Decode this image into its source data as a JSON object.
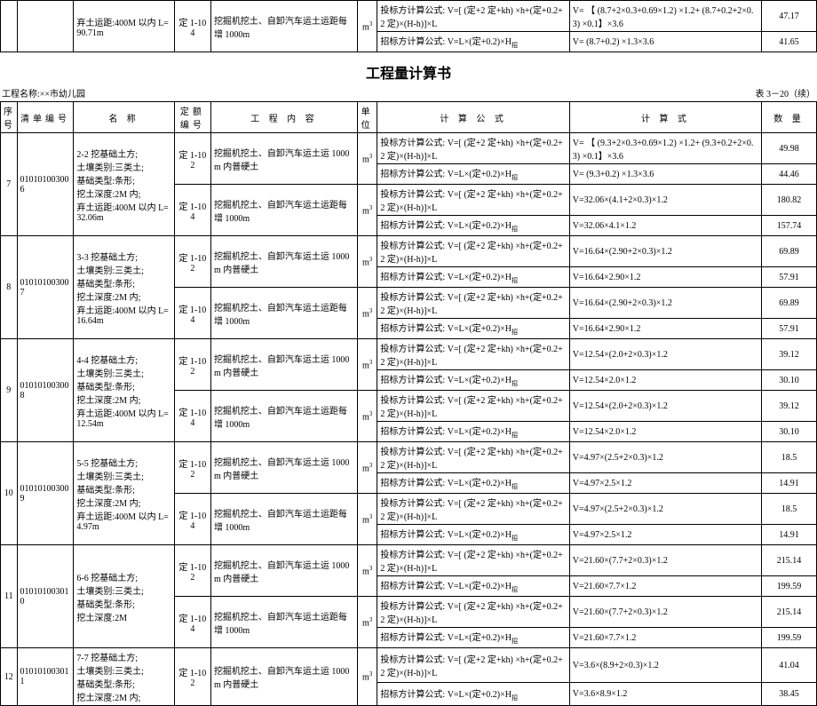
{
  "top_section": {
    "row1": {
      "name_fragment": "弃土运距:400M 以内  L=90.71m",
      "dnum": "定 1-104",
      "content": "挖掘机挖土、自卸汽车运土运距每增 1000m",
      "unit_html": "m³",
      "lines": [
        {
          "formula": "投标方计算公式: V=[ (定+2 定+kh) ×h+(定+0.2+2 定)×(H-h)]×L",
          "calc": "V= 【 (8.7+2×0.3+0.69×1.2) ×1.2+ (8.7+0.2+2×0.3) ×0.1】×3.6",
          "qty": "47.17"
        },
        {
          "formula": "招标方计算公式: V=L×(定+0.2)×H 招",
          "calc": "V= (8.7+0.2) ×1.3×3.6",
          "qty": "41.65"
        }
      ]
    }
  },
  "title": "工程量计算书",
  "project_name_label": "工程名称:",
  "project_name": "××市幼儿园",
  "table_no": "表 3－20（续）",
  "headers": {
    "seq": "序号",
    "code": "清单编号",
    "name": "名    称",
    "dnum": "定额编号",
    "content": "工 程 内 容",
    "unit": "单位",
    "formula": "计 算 公 式",
    "calc": "计    算    式",
    "qty": "数  量"
  },
  "groups": [
    {
      "seq": "7",
      "code": "010101003006",
      "name_lines": [
        "2-2 挖基础土方;",
        "土壤类别:三类土;",
        "基础类型:条形;",
        "挖土深度:2M 内;",
        "弃土运距:400M 以内 L=32.06m"
      ],
      "items": [
        {
          "dnum": "定 1-102",
          "content": "挖掘机挖土、自卸汽车运土运 1000m 内普硬土",
          "unit_html": "m³",
          "lines": [
            {
              "formula": "投标方计算公式: V=[ (定+2 定+kh) ×h+(定+0.2+2 定)×(H-h)]×L",
              "calc": "V= 【 (9.3+2×0.3+0.69×1.2) ×1.2+ (9.3+0.2+2×0.3) ×0.1】×3.6",
              "qty": "49.98"
            },
            {
              "formula": "招标方计算公式: V=L×(定+0.2)×H 招",
              "calc": "V= (9.3+0.2) ×1.3×3.6",
              "qty": "44.46"
            }
          ]
        },
        {
          "dnum": "定 1-104",
          "content": "挖掘机挖土、自卸汽车运土运距每增 1000m",
          "unit_html": "m³",
          "lines": [
            {
              "formula": "投标方计算公式: V=[ (定+2 定+kh) ×h+(定+0.2+2 定)×(H-h)]×L",
              "calc": "V=32.06×(4.1+2×0.3)×1.2",
              "qty": "180.82"
            },
            {
              "formula": "招标方计算公式: V=L×(定+0.2)×H 招",
              "calc": "V=32.06×4.1×1.2",
              "qty": "157.74"
            }
          ]
        }
      ]
    },
    {
      "seq": "8",
      "code": "010101003007",
      "name_lines": [
        "3-3 挖基础土方;",
        "土壤类别:三类土;",
        "基础类型:条形;",
        "挖土深度:2M 内;",
        "弃土运距:400M 以内  L=16.64m"
      ],
      "items": [
        {
          "dnum": "定 1-102",
          "content": "挖掘机挖土、自卸汽车运土运 1000m 内普硬土",
          "unit_html": "m³",
          "lines": [
            {
              "formula": "投标方计算公式: V=[ (定+2 定+kh) ×h+(定+0.2+2 定)×(H-h)]×L",
              "calc": "V=16.64×(2.90+2×0.3)×1.2",
              "qty": "69.89"
            },
            {
              "formula": "招标方计算公式: V=L×(定+0.2)×H 招",
              "calc": "V=16.64×2.90×1.2",
              "qty": "57.91"
            }
          ]
        },
        {
          "dnum": "定 1-104",
          "content": "挖掘机挖土、自卸汽车运土运距每增 1000m",
          "unit_html": "m³",
          "lines": [
            {
              "formula": "投标方计算公式: V=[ (定+2 定+kh) ×h+(定+0.2+2 定)×(H-h)]×L",
              "calc": "V=16.64×(2.90+2×0.3)×1.2",
              "qty": "69.89"
            },
            {
              "formula": "招标方计算公式: V=L×(定+0.2)×H 招",
              "calc": "V=16.64×2.90×1.2",
              "qty": "57.91"
            }
          ]
        }
      ]
    },
    {
      "seq": "9",
      "code": "010101003008",
      "name_lines": [
        "4-4 挖基础土方;",
        "土壤类别:三类土;",
        "基础类型:条形;",
        "挖土深度:2M 内;",
        "弃土运距:400M 以内  L=12.54m"
      ],
      "items": [
        {
          "dnum": "定 1-102",
          "content": "挖掘机挖土、自卸汽车运土运 1000m 内普硬土",
          "unit_html": "m³",
          "lines": [
            {
              "formula": "投标方计算公式: V=[ (定+2 定+kh) ×h+(定+0.2+2 定)×(H-h)]×L",
              "calc": "V=12.54×(2.0+2×0.3)×1.2",
              "qty": "39.12"
            },
            {
              "formula": "招标方计算公式: V=L×(定+0.2)×H 招",
              "calc": "V=12.54×2.0×1.2",
              "qty": "30.10"
            }
          ]
        },
        {
          "dnum": "定 1-104",
          "content": "挖掘机挖土、自卸汽车运土运距每增 1000m",
          "unit_html": "m³",
          "lines": [
            {
              "formula": "投标方计算公式: V=[ (定+2 定+kh) ×h+(定+0.2+2 定)×(H-h)]×L",
              "calc": "V=12.54×(2.0+2×0.3)×1.2",
              "qty": "39.12"
            },
            {
              "formula": "招标方计算公式: V=L×(定+0.2)×H 招",
              "calc": "V=12.54×2.0×1.2",
              "qty": "30.10"
            }
          ]
        }
      ]
    },
    {
      "seq": "10",
      "code": "010101003009",
      "name_lines": [
        "5-5 挖基础土方;",
        "土壤类别:三类土;",
        "基础类型:条形;",
        "挖土深度:2M 内;",
        "弃土运距:400M 以内  L=4.97m"
      ],
      "items": [
        {
          "dnum": "定 1-102",
          "content": "挖掘机挖土、自卸汽车运土运 1000m 内普硬土",
          "unit_html": "m³",
          "lines": [
            {
              "formula": "投标方计算公式: V=[ (定+2 定+kh) ×h+(定+0.2+2 定)×(H-h)]×L",
              "calc": "V=4.97×(2.5+2×0.3)×1.2",
              "qty": "18.5"
            },
            {
              "formula": "招标方计算公式: V=L×(定+0.2)×H 招",
              "calc": "V=4.97×2.5×1.2",
              "qty": "14.91"
            }
          ]
        },
        {
          "dnum": "定 1-104",
          "content": "挖掘机挖土、自卸汽车运土运距每增 1000m",
          "unit_html": "m³",
          "lines": [
            {
              "formula": "投标方计算公式: V=[ (定+2 定+kh) ×h+(定+0.2+2 定)×(H-h)]×L",
              "calc": "V=4.97×(2.5+2×0.3)×1.2",
              "qty": "18.5"
            },
            {
              "formula": "招标方计算公式: V=L×(定+0.2)×H 招",
              "calc": "V=4.97×2.5×1.2",
              "qty": "14.91"
            }
          ]
        }
      ]
    },
    {
      "seq": "11",
      "code": "010101003010",
      "name_lines": [
        "6-6 挖基础土方;",
        "土壤类别:三类土;",
        "基础类型:条形;",
        "挖土深度:2M"
      ],
      "items": [
        {
          "dnum": "定 1-102",
          "content": "挖掘机挖土、自卸汽车运土运 1000m 内普硬土",
          "unit_html": "m³",
          "lines": [
            {
              "formula": "投标方计算公式: V=[ (定+2 定+kh) ×h+(定+0.2+2 定)×(H-h)]×L",
              "calc": "V=21.60×(7.7+2×0.3)×1.2",
              "qty": "215.14"
            },
            {
              "formula": "招标方计算公式: V=L×(定+0.2)×H 招",
              "calc": "V=21.60×7.7×1.2",
              "qty": "199.59"
            }
          ]
        },
        {
          "dnum": "定 1-104",
          "content": "挖掘机挖土、自卸汽车运土运距每增 1000m",
          "unit_html": "m³",
          "lines": [
            {
              "formula": "投标方计算公式: V=[ (定+2 定+kh) ×h+(定+0.2+2 定)×(H-h)]×L",
              "calc": "V=21.60×(7.7+2×0.3)×1.2",
              "qty": "215.14"
            },
            {
              "formula": "招标方计算公式: V=L×(定+0.2)×H 招",
              "calc": "V=21.60×7.7×1.2",
              "qty": "199.59"
            }
          ]
        }
      ]
    },
    {
      "seq": "12",
      "code": "010101003011",
      "name_lines": [
        "7-7 挖基础土方;",
        "土壤类别:三类土;",
        "基础类型:条形;",
        "挖土深度:2M 内;"
      ],
      "items": [
        {
          "dnum": "定 1-102",
          "content": "挖掘机挖土、自卸汽车运土运 1000m 内普硬土",
          "unit_html": "m³",
          "lines": [
            {
              "formula": "投标方计算公式: V=[ (定+2 定+kh) ×h+(定+0.2+2 定)×(H-h)]×L",
              "calc": "V=3.6×(8.9+2×0.3)×1.2",
              "qty": "41.04"
            },
            {
              "formula": "招标方计算公式: V=L×(定+0.2)×H 招",
              "calc": "V=3.6×8.9×1.2",
              "qty": "38.45"
            }
          ]
        }
      ]
    }
  ]
}
